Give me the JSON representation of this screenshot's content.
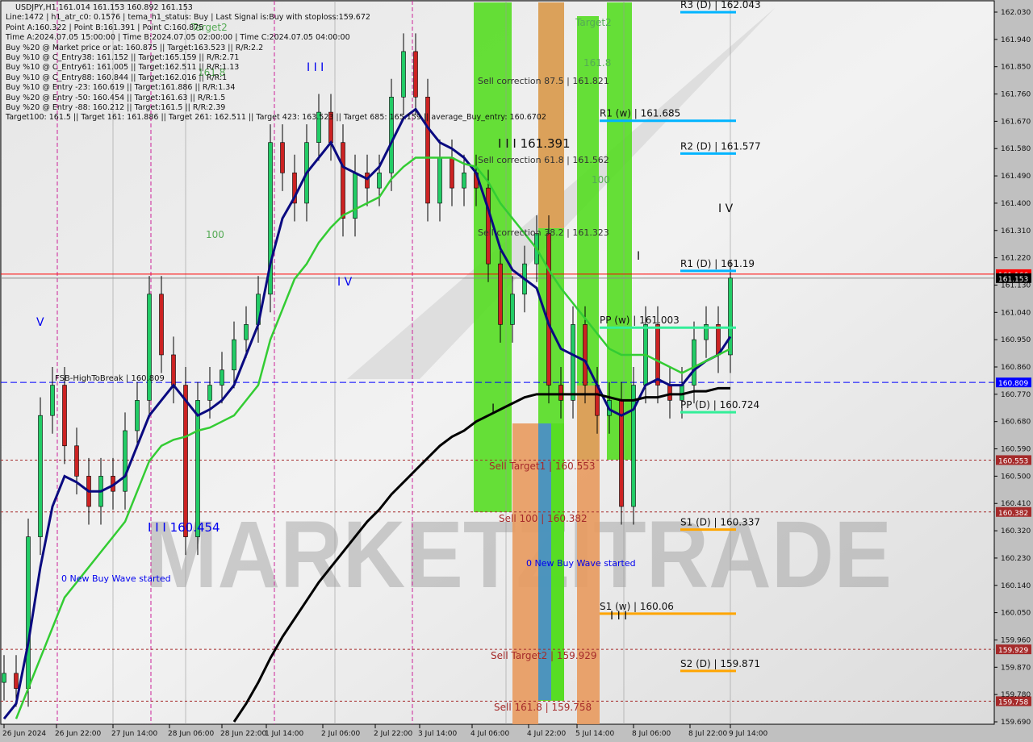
{
  "info_panel": {
    "title": "USDJPY,H1  161.014 161.153 160.892 161.153",
    "lines": [
      "Line:1472 | h1_atr_c0: 0.1576 | tema_h1_status: Buy | Last Signal is:Buy with stoploss:159.672",
      "Point A:160.322 | Point B:161.391 | Point C:160.875",
      "Time A:2024.07.05 15:00:00 | Time B:2024.07.05 02:00:00 | Time C:2024.07.05 04:00:00",
      "Buy %20 @ Market price or at: 160.875 || Target:163.523 || R/R:2.2",
      "Buy %10 @ C_Entry38: 161.152 || Target:165.159 || R/R:2.71",
      "Buy %10 @ C_Entry61: 161.005 || Target:162.511 || R/R:1.13",
      "Buy %10 @ C_Entry88: 160.844 || Target:162.016 || R/R:1",
      "Buy %10 @ Entry -23: 160.619 || Target:161.886 || R/R:1.34",
      "Buy %20 @ Entry -50: 160.454 || Target:161.63 || R/R:1.5",
      "Buy %20 @ Entry -88: 160.212 || Target:161.5 || R/R:2.39",
      "Target100: 161.5 || Target 161: 161.886 || Target 261: 162.511 || Target 423: 163.523 || Target 685: 165.159 || average_Buy_entry: 160.6702"
    ]
  },
  "watermark": "MARKETZITRADE",
  "chart_data": {
    "type": "candlestick",
    "symbol": "USDJPY",
    "timeframe": "H1",
    "ylim": [
      159.69,
      162.03
    ],
    "y_ticks": [
      162.03,
      161.94,
      161.85,
      161.76,
      161.67,
      161.58,
      161.49,
      161.4,
      161.31,
      161.22,
      161.13,
      161.04,
      160.95,
      160.86,
      160.77,
      160.68,
      160.59,
      160.5,
      160.41,
      160.32,
      160.23,
      160.14,
      160.05,
      159.96,
      159.87,
      159.78,
      159.69
    ],
    "x_ticks": [
      "26 Jun 2024",
      "26 Jun 22:00",
      "27 Jun 14:00",
      "28 Jun 06:00",
      "28 Jun 22:00",
      "1 Jul 14:00",
      "2 Jul 06:00",
      "2 Jul 22:00",
      "3 Jul 14:00",
      "4 Jul 06:00",
      "4 Jul 22:00",
      "5 Jul 14:00",
      "8 Jul 06:00",
      "8 Jul 22:00",
      "9 Jul 14:00"
    ],
    "close": [
      159.85,
      159.8,
      160.3,
      160.7,
      160.8,
      160.6,
      160.5,
      160.4,
      160.5,
      160.45,
      160.65,
      160.75,
      161.1,
      160.9,
      160.8,
      160.3,
      160.75,
      160.8,
      160.85,
      160.95,
      161.0,
      161.1,
      161.6,
      161.5,
      161.4,
      161.6,
      161.7,
      161.6,
      161.35,
      161.5,
      161.45,
      161.5,
      161.75,
      161.9,
      161.75,
      161.4,
      161.55,
      161.45,
      161.5,
      161.45,
      161.2,
      161.0,
      161.1,
      161.2,
      161.3,
      160.8,
      160.75,
      161.0,
      160.8,
      160.7,
      160.75,
      160.4,
      160.8,
      161.0,
      160.8,
      160.75,
      160.8,
      160.95,
      161.0,
      160.9,
      161.153
    ],
    "series": [
      {
        "color": "#0a0a80",
        "values": [
          159.7,
          159.75,
          159.95,
          160.2,
          160.4,
          160.5,
          160.48,
          160.45,
          160.45,
          160.47,
          160.5,
          160.6,
          160.7,
          160.75,
          160.8,
          160.75,
          160.7,
          160.72,
          160.75,
          160.8,
          160.9,
          161.0,
          161.2,
          161.35,
          161.42,
          161.5,
          161.55,
          161.6,
          161.52,
          161.5,
          161.48,
          161.52,
          161.6,
          161.68,
          161.71,
          161.65,
          161.6,
          161.58,
          161.55,
          161.5,
          161.38,
          161.25,
          161.18,
          161.15,
          161.12,
          161.0,
          160.92,
          160.9,
          160.88,
          160.8,
          160.72,
          160.7,
          160.72,
          160.8,
          160.82,
          160.8,
          160.8,
          160.85,
          160.88,
          160.9,
          160.96
        ]
      },
      {
        "color": "#33cc33",
        "values": [
          null,
          159.7,
          159.8,
          159.9,
          160.0,
          160.1,
          160.15,
          160.2,
          160.25,
          160.3,
          160.35,
          160.45,
          160.55,
          160.6,
          160.62,
          160.63,
          160.65,
          160.66,
          160.68,
          160.7,
          160.75,
          160.8,
          160.95,
          161.05,
          161.15,
          161.2,
          161.27,
          161.32,
          161.36,
          161.38,
          161.4,
          161.42,
          161.48,
          161.52,
          161.55,
          161.55,
          161.55,
          161.55,
          161.53,
          161.52,
          161.47,
          161.4,
          161.35,
          161.3,
          161.25,
          161.18,
          161.12,
          161.07,
          161.02,
          160.97,
          160.92,
          160.9,
          160.9,
          160.9,
          160.88,
          160.86,
          160.84,
          160.86,
          160.88,
          160.9,
          160.92
        ]
      },
      {
        "color": "#000000",
        "values": [
          null,
          null,
          null,
          null,
          null,
          null,
          null,
          null,
          null,
          null,
          null,
          null,
          null,
          null,
          null,
          null,
          null,
          null,
          null,
          159.69,
          159.75,
          159.82,
          159.9,
          159.97,
          160.03,
          160.09,
          160.15,
          160.2,
          160.25,
          160.3,
          160.35,
          160.39,
          160.44,
          160.48,
          160.52,
          160.56,
          160.6,
          160.63,
          160.65,
          160.68,
          160.7,
          160.72,
          160.74,
          160.76,
          160.77,
          160.77,
          160.77,
          160.77,
          160.77,
          160.77,
          160.76,
          160.75,
          160.75,
          160.76,
          160.76,
          160.77,
          160.77,
          160.78,
          160.78,
          160.79,
          160.79
        ]
      }
    ],
    "price_tags": [
      {
        "price": 161.166,
        "label": "161.166",
        "bg": "#ff0000",
        "fg": "#ffffff",
        "line": "solid"
      },
      {
        "price": 161.153,
        "label": "161.153",
        "bg": "#000000",
        "fg": "#ffffff",
        "line": "gray"
      },
      {
        "price": 160.809,
        "label": "160.809",
        "bg": "#0000ff",
        "fg": "#ffffff",
        "line": "dashed-blue"
      },
      {
        "price": 160.553,
        "label": "160.553",
        "bg": "#a52a2a",
        "fg": "#ffffff",
        "line": "dotted"
      },
      {
        "price": 160.382,
        "label": "160.382",
        "bg": "#a52a2a",
        "fg": "#ffffff",
        "line": "dotted"
      },
      {
        "price": 159.929,
        "label": "159.929",
        "bg": "#a52a2a",
        "fg": "#ffffff",
        "line": "dotted"
      },
      {
        "price": 159.758,
        "label": "159.758",
        "bg": "#a52a2a",
        "fg": "#ffffff",
        "line": "dotted"
      }
    ],
    "pivots": [
      {
        "label": "R3 (D) | 162.043",
        "price": 162.043,
        "color": "#00b4ff",
        "span": "daily"
      },
      {
        "label": "R1 (w) | 161.685",
        "price": 161.685,
        "color": "#00b4ff",
        "span": "weekly"
      },
      {
        "label": "R2 (D) | 161.577",
        "price": 161.577,
        "color": "#00b4ff",
        "span": "daily"
      },
      {
        "label": "R1 (D) | 161.19",
        "price": 161.19,
        "color": "#00b4ff",
        "span": "daily"
      },
      {
        "label": "PP (w) | 161.003",
        "price": 161.003,
        "color": "#33ee99",
        "span": "weekly"
      },
      {
        "label": "PP (D) | 160.724",
        "price": 160.724,
        "color": "#33ee99",
        "span": "daily"
      },
      {
        "label": "S1 (D) | 160.337",
        "price": 160.337,
        "color": "#ffa500",
        "span": "daily"
      },
      {
        "label": "S1 (w) | 160.06",
        "price": 160.06,
        "color": "#ffa500",
        "span": "weekly"
      },
      {
        "label": "S2 (D) | 159.871",
        "price": 159.871,
        "color": "#ffa500",
        "span": "daily"
      }
    ],
    "annotations": {
      "fsb": "FSB-HighToBreak | 160.809",
      "new_buy_wave_1": "0 New Buy Wave started",
      "new_buy_wave_2": "0 New Buy Wave started",
      "wave_iii_low": "I I I 160.454",
      "wave_iii_high": "I I I 161.391",
      "sell_corr_875": "Sell correction 87.5 | 161.821",
      "sell_corr_618": "Sell correction 61.8 | 161.562",
      "sell_corr_382": "Sell correction 38.2 | 161.323",
      "sell_target1": "Sell Target1 | 160.553",
      "sell_100": "Sell 100 | 160.382",
      "sell_target2": "Sell Target2 | 159.929",
      "sell_1618": "Sell 161.8 | 159.758",
      "target2_a": "Target2",
      "target2_b": "Target2",
      "fib1618_a": "161.8",
      "fib1618_b": "161.8",
      "fib100_a": "100",
      "fib100_b": "100",
      "wave_v": "V",
      "wave_iii_blue": "I I I",
      "wave_iv_blue": "I V",
      "wave_iv_black": "I V",
      "wave_i_a": "I",
      "wave_i_b": "I",
      "wave_iii_black": "I I I"
    },
    "colors": {
      "bull": "#22cc66",
      "bear": "#cc2222",
      "buy_zone": "#55dd22",
      "sell_zone": "#e89a5e",
      "blue_zone": "#4a8ccc",
      "stop_line": "#ff4400"
    }
  }
}
